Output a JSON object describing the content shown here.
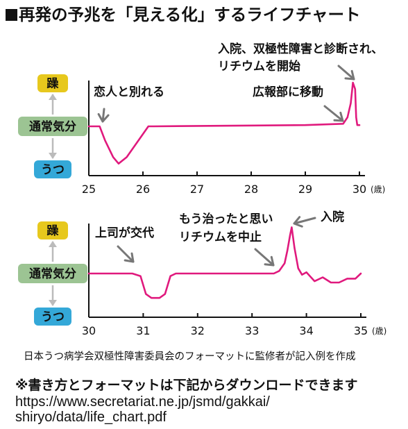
{
  "title": "再発の予兆を「見える化」するライフチャート",
  "mood_labels": {
    "manic": "躁",
    "normal": "通常気分",
    "depressed": "うつ"
  },
  "colors": {
    "line": "#e0197d",
    "manic_bg": "#e7c81d",
    "normal_bg": "#9cc493",
    "depressed_bg": "#34a8d8",
    "arrow": "#bbbbbb",
    "axis": "#111111"
  },
  "chart_data": [
    {
      "type": "line",
      "xlim": [
        25,
        30
      ],
      "ylim": [
        -2,
        2
      ],
      "x_ticks": [
        "25",
        "26",
        "27",
        "28",
        "29",
        "30"
      ],
      "x_unit": "(歳)",
      "y_categories": [
        "躁",
        "通常気分",
        "うつ"
      ],
      "series": [
        {
          "x": [
            25.0,
            25.2,
            25.3,
            25.45,
            25.55,
            25.7,
            25.85,
            26.0,
            26.1,
            26.2,
            29.0,
            29.7,
            29.78,
            29.84,
            29.88,
            29.92,
            29.94,
            29.96,
            30.0
          ],
          "y": [
            0,
            0,
            -0.55,
            -1.2,
            -1.45,
            -1.2,
            -0.75,
            -0.3,
            0,
            0,
            0.05,
            0.1,
            0.35,
            0.9,
            1.7,
            1.45,
            0.35,
            0.05,
            0.05
          ]
        }
      ],
      "annotations": [
        {
          "text": [
            "恋人と別れる"
          ],
          "x": 25.2
        },
        {
          "text": [
            "広報部に移動"
          ],
          "x": 29.25
        },
        {
          "text": [
            "入院、双極性障害と診断され、",
            "リチウムを開始"
          ],
          "x": 29.5
        }
      ]
    },
    {
      "type": "line",
      "xlim": [
        30,
        35
      ],
      "ylim": [
        -2,
        2
      ],
      "x_ticks": [
        "30",
        "31",
        "32",
        "33",
        "34",
        "35"
      ],
      "x_unit": "(歳)",
      "y_categories": [
        "躁",
        "通常気分",
        "うつ"
      ],
      "series": [
        {
          "x": [
            30.0,
            30.8,
            30.95,
            31.05,
            31.15,
            31.3,
            31.4,
            31.5,
            31.6,
            33.4,
            33.5,
            33.6,
            33.65,
            33.7,
            33.73,
            33.78,
            33.85,
            33.92,
            34.0,
            34.15,
            34.3,
            34.45,
            34.6,
            34.75,
            34.9,
            35.0
          ],
          "y": [
            0,
            0,
            -0.1,
            -0.8,
            -0.95,
            -0.95,
            -0.8,
            -0.1,
            0,
            0,
            0.1,
            0.4,
            0.9,
            1.5,
            1.8,
            1.0,
            0.2,
            -0.05,
            0.05,
            -0.3,
            -0.15,
            -0.35,
            -0.35,
            -0.2,
            -0.2,
            0
          ]
        }
      ],
      "annotations": [
        {
          "text": [
            "上司が交代"
          ],
          "x": 30.8
        },
        {
          "text": [
            "もう治ったと思い",
            "リチウムを中止"
          ],
          "x": 33.4
        },
        {
          "text": [
            "入院"
          ],
          "x": 33.75
        }
      ]
    }
  ],
  "note": "日本うつ病学会双極性障害委員会のフォーマットに監修者が記入例を作成",
  "download_note": "※書き方とフォーマットは下記からダウンロードできます",
  "url_line1": "https://www.secretariat.ne.jp/jsmd/gakkai/",
  "url_line2": "shiryo/data/life_chart.pdf"
}
